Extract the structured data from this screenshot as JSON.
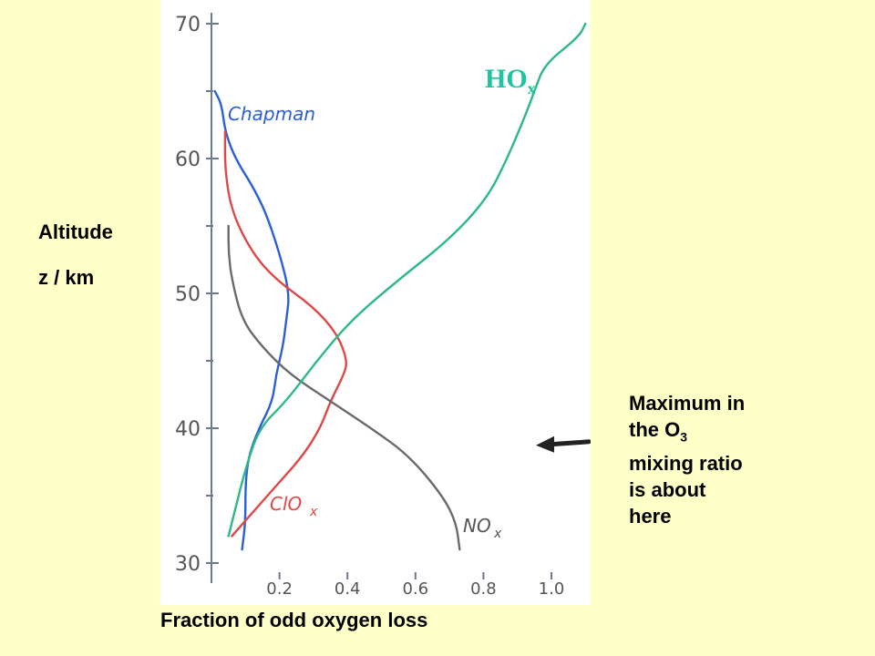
{
  "chart_data": {
    "type": "line",
    "title": "",
    "xlabel": "Fraction of odd oxygen loss",
    "ylabel": [
      "Altitude",
      "z / km"
    ],
    "xlim": [
      0,
      1.1
    ],
    "ylim": [
      30,
      72
    ],
    "x_ticks": [
      0.2,
      0.4,
      0.6,
      0.8,
      1.0
    ],
    "x_tick_labels": [
      "0.2",
      "0.4",
      "0.6",
      "0.8",
      "1.0"
    ],
    "y_ticks": [
      30,
      40,
      50,
      60,
      70
    ],
    "y_tick_labels": [
      "30",
      "40",
      "50",
      "60",
      "70"
    ],
    "grid": false,
    "series": [
      {
        "name": "Chapman",
        "color": "#2A5FD8",
        "points": [
          [
            0.09,
            31
          ],
          [
            0.1,
            33
          ],
          [
            0.1,
            36
          ],
          [
            0.11,
            38
          ],
          [
            0.14,
            40
          ],
          [
            0.18,
            42
          ],
          [
            0.19,
            44
          ],
          [
            0.21,
            46
          ],
          [
            0.22,
            48
          ],
          [
            0.23,
            50
          ],
          [
            0.2,
            53
          ],
          [
            0.16,
            56
          ],
          [
            0.12,
            58
          ],
          [
            0.07,
            60
          ],
          [
            0.04,
            62
          ],
          [
            0.03,
            64
          ],
          [
            0.01,
            65
          ]
        ]
      },
      {
        "name": "ClOx",
        "color": "#E04848",
        "points": [
          [
            0.06,
            32
          ],
          [
            0.13,
            34
          ],
          [
            0.2,
            36
          ],
          [
            0.27,
            38
          ],
          [
            0.32,
            40
          ],
          [
            0.35,
            42
          ],
          [
            0.39,
            44
          ],
          [
            0.4,
            45
          ],
          [
            0.37,
            47
          ],
          [
            0.3,
            49
          ],
          [
            0.19,
            51
          ],
          [
            0.12,
            53
          ],
          [
            0.06,
            56
          ],
          [
            0.04,
            59
          ],
          [
            0.04,
            62
          ]
        ]
      },
      {
        "name": "NOx",
        "color": "#6A6A6A",
        "points": [
          [
            0.73,
            31
          ],
          [
            0.72,
            33
          ],
          [
            0.68,
            35
          ],
          [
            0.58,
            38
          ],
          [
            0.47,
            40
          ],
          [
            0.35,
            42
          ],
          [
            0.23,
            44
          ],
          [
            0.15,
            46
          ],
          [
            0.09,
            48
          ],
          [
            0.06,
            51
          ],
          [
            0.05,
            53
          ],
          [
            0.05,
            55
          ]
        ]
      },
      {
        "name": "HOx",
        "color": "#2DB987",
        "points": [
          [
            0.05,
            32
          ],
          [
            0.07,
            34
          ],
          [
            0.1,
            37
          ],
          [
            0.14,
            40
          ],
          [
            0.22,
            42
          ],
          [
            0.31,
            45
          ],
          [
            0.41,
            48
          ],
          [
            0.55,
            51
          ],
          [
            0.7,
            54
          ],
          [
            0.81,
            57
          ],
          [
            0.87,
            60
          ],
          [
            0.92,
            63
          ],
          [
            0.95,
            65
          ],
          [
            0.98,
            67
          ],
          [
            1.08,
            69
          ],
          [
            1.1,
            70
          ]
        ]
      }
    ],
    "curve_labels": {
      "Chapman": "Chapman",
      "ClOx": "ClO",
      "ClOx_sub": "x",
      "NOx": "NO",
      "NOx_sub": "x",
      "HOx": "HO",
      "HOx_sub": "x"
    },
    "annotation": [
      "Maximum in",
      "the O3",
      "mixing ratio",
      "is about",
      "here"
    ],
    "annotation_arrow_altitude": 39
  }
}
